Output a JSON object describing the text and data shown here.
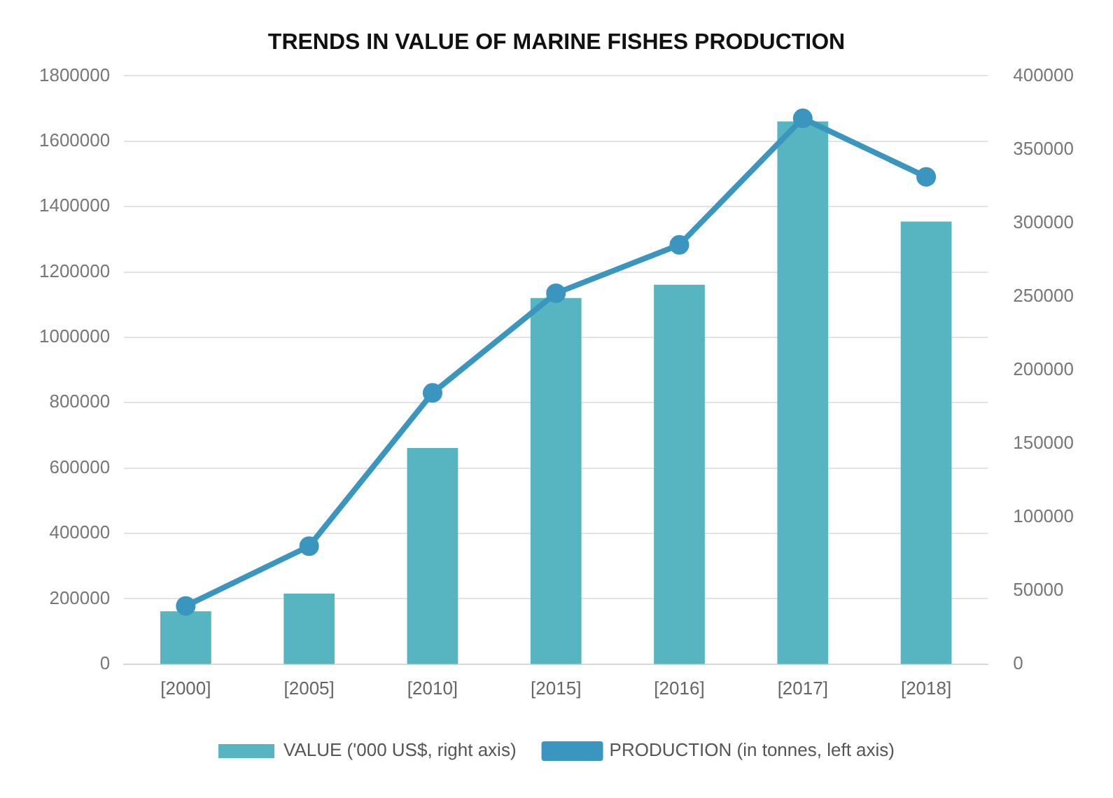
{
  "chart_data": {
    "type": "bar",
    "title": "TRENDS IN VALUE OF MARINE FISHES PRODUCTION",
    "categories": [
      "[2000]",
      "[2005]",
      "[2010]",
      "[2015]",
      "[2016]",
      "[2017]",
      "[2018]"
    ],
    "series": [
      {
        "name": "VALUE ('000 US$, right axis)",
        "axis": "y2",
        "color": "#57b4c1",
        "values": [
          36000,
          48000,
          147000,
          249000,
          258000,
          369000,
          301000
        ]
      },
      {
        "name": "PRODUCTION (in tonnes, left axis)",
        "type": "line",
        "color": "#3a95bf",
        "marker": "circle",
        "values": [
          178000,
          361000,
          830000,
          1135000,
          1283000,
          1670000,
          1491000
        ]
      }
    ],
    "ylim": [
      0,
      1800000
    ],
    "yticks": [
      0,
      200000,
      400000,
      600000,
      800000,
      1000000,
      1200000,
      1400000,
      1600000,
      1800000
    ],
    "y2lim": [
      0,
      400000
    ],
    "y2ticks": [
      0,
      50000,
      100000,
      150000,
      200000,
      250000,
      300000,
      350000,
      400000
    ],
    "grid": "y",
    "legend": "bottom"
  }
}
